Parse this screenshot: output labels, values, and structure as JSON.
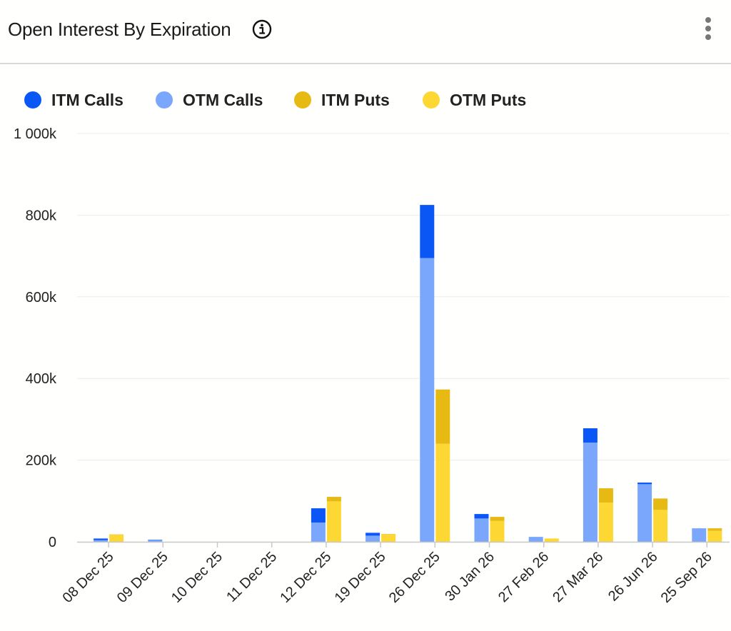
{
  "header": {
    "title": "Open Interest By Expiration",
    "info_icon": "info-icon",
    "menu_icon": "more-vertical-icon"
  },
  "legend": [
    {
      "name": "ITM Calls",
      "color": "#0b57f5"
    },
    {
      "name": "OTM Calls",
      "color": "#7aa6fb"
    },
    {
      "name": "ITM Puts",
      "color": "#e6b913"
    },
    {
      "name": "OTM Puts",
      "color": "#fdd835"
    }
  ],
  "chart_data": {
    "type": "bar",
    "stacked": true,
    "title": "Open Interest By Expiration",
    "xlabel": "",
    "ylabel": "",
    "ylim": [
      0,
      1000000
    ],
    "yticks": [
      0,
      200000,
      400000,
      600000,
      800000,
      1000000
    ],
    "ytick_labels": [
      "0",
      "200k",
      "400k",
      "600k",
      "800k",
      "1 000k"
    ],
    "categories": [
      "08 Dec 25",
      "09 Dec 25",
      "10 Dec 25",
      "11 Dec 25",
      "12 Dec 25",
      "19 Dec 25",
      "26 Dec 25",
      "30 Jan 26",
      "27 Feb 26",
      "27 Mar 26",
      "26 Jun 26",
      "25 Sep 26"
    ],
    "stacks": [
      {
        "name": "Calls",
        "series": [
          {
            "name": "OTM Calls",
            "color": "#7aa6fb",
            "values": [
              4000,
              4000,
              0,
              0,
              47000,
              15000,
              695000,
              57000,
              12000,
              243000,
              141000,
              33000
            ]
          },
          {
            "name": "ITM Calls",
            "color": "#0b57f5",
            "values": [
              4000,
              1000,
              0,
              0,
              35000,
              7000,
              130000,
              11000,
              0,
              35000,
              4000,
              0
            ]
          }
        ]
      },
      {
        "name": "Puts",
        "series": [
          {
            "name": "OTM Puts",
            "color": "#fdd835",
            "values": [
              17000,
              0,
              0,
              0,
              99000,
              18000,
              240000,
              51000,
              8000,
              96000,
              78000,
              27000
            ]
          },
          {
            "name": "ITM Puts",
            "color": "#e6b913",
            "values": [
              1000,
              0,
              0,
              0,
              11000,
              1000,
              133000,
              10000,
              0,
              35000,
              28000,
              6000
            ]
          }
        ]
      }
    ],
    "grid": true,
    "legend_position": "top-left"
  }
}
